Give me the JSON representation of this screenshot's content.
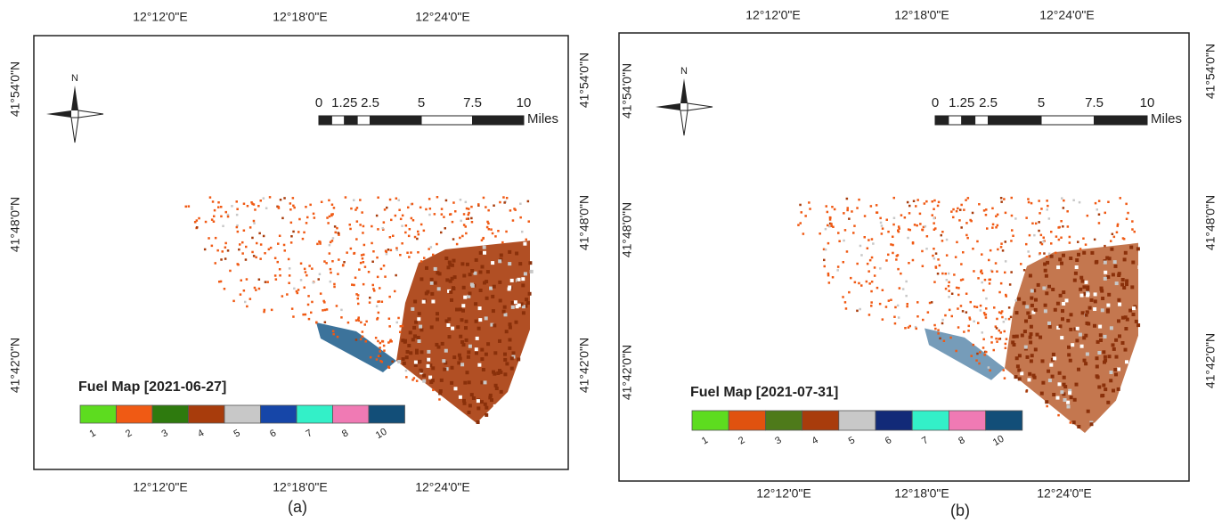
{
  "panels": [
    {
      "caption": "(a)",
      "top_labels": [
        "12°12'0\"E",
        "12°18'0\"E",
        "12°24'0\"E"
      ],
      "bottom_labels": [
        "12°12'0\"E",
        "12°18'0\"E",
        "12°24'0\"E"
      ],
      "left_labels": [
        "41°54'0\"N",
        "41°48'0\"N",
        "41°42'0\"N"
      ],
      "right_labels": [
        "41°54'0\"N",
        "41°48'0\"N",
        "41°42'0\"N"
      ],
      "north": "N",
      "scale": {
        "labels": [
          "0",
          "1.25",
          "2.5",
          "5",
          "7.5",
          "10"
        ],
        "unit": "Miles"
      },
      "legend": {
        "title": "Fuel Map [2021-06-27]",
        "classes": [
          {
            "label": "1",
            "color": "#5ddc1f"
          },
          {
            "label": "2",
            "color": "#f05a14"
          },
          {
            "label": "3",
            "color": "#2e7a0e"
          },
          {
            "label": "4",
            "color": "#a83c0c"
          },
          {
            "label": "5",
            "color": "#c8c8c8"
          },
          {
            "label": "6",
            "color": "#1646a8"
          },
          {
            "label": "7",
            "color": "#33f0c8"
          },
          {
            "label": "8",
            "color": "#f07ab4"
          },
          {
            "label": "10",
            "color": "#124e78"
          }
        ]
      }
    },
    {
      "caption": "(b)",
      "top_labels": [
        "12°12'0\"E",
        "12°18'0\"E",
        "12°24'0\"E"
      ],
      "bottom_labels": [
        "12°12'0\"E",
        "12°18'0\"E",
        "12°24'0\"E"
      ],
      "left_labels": [
        "41°54'0\"N",
        "41°48'0\"N",
        "41°42'0\"N"
      ],
      "right_labels": [
        "41°54'0\"N",
        "41°48'0\"N",
        "41°42'0\"N"
      ],
      "north": "N",
      "scale": {
        "labels": [
          "0",
          "1.25",
          "2.5",
          "5",
          "7.5",
          "10"
        ],
        "unit": "Miles"
      },
      "legend": {
        "title": "Fuel Map [2021-07-31]",
        "classes": [
          {
            "label": "1",
            "color": "#5ddc1f"
          },
          {
            "label": "2",
            "color": "#e0520f"
          },
          {
            "label": "3",
            "color": "#4e7a1a"
          },
          {
            "label": "4",
            "color": "#a83c0c"
          },
          {
            "label": "5",
            "color": "#c8c8c8"
          },
          {
            "label": "6",
            "color": "#122a78"
          },
          {
            "label": "7",
            "color": "#33f0c8"
          },
          {
            "label": "8",
            "color": "#f07ab4"
          },
          {
            "label": "10",
            "color": "#124e78"
          }
        ]
      }
    }
  ]
}
